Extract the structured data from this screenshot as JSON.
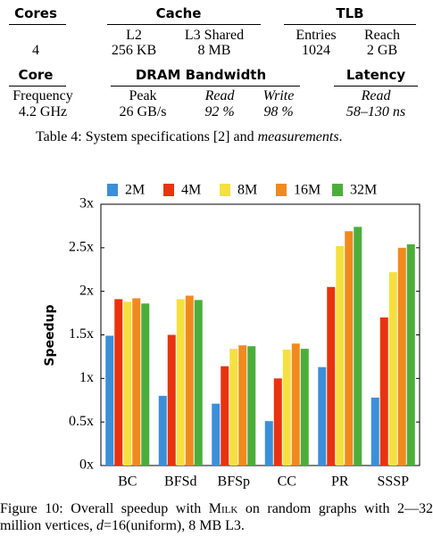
{
  "table": {
    "header1": [
      "Cores",
      "Cache",
      "TLB"
    ],
    "subheader1": [
      "L2",
      "L3 Shared",
      "Entries",
      "Reach"
    ],
    "row1": [
      "4",
      "256 KB",
      "8 MB",
      "1024",
      "2 GB"
    ],
    "header2": [
      "Core",
      "DRAM Bandwidth",
      "Latency"
    ],
    "subheader2": [
      "Frequency",
      "Peak",
      "Read",
      "Write",
      "Read"
    ],
    "row2": [
      "4.2 GHz",
      "26 GB/s",
      "92 %",
      "98 %",
      "58–130 ns"
    ],
    "caption": [
      "Table 4: System specifications [2] and ",
      "measurements",
      "."
    ]
  },
  "chart_data": {
    "type": "bar",
    "y_label": "Speedup",
    "categories": [
      "BC",
      "BFSd",
      "BFSp",
      "CC",
      "PR",
      "SSSP"
    ],
    "series": [
      {
        "name": "2M",
        "color": "#3b8fd9",
        "values": [
          1.49,
          0.8,
          0.71,
          0.51,
          1.13,
          0.78
        ]
      },
      {
        "name": "4M",
        "color": "#e8330f",
        "values": [
          1.91,
          1.5,
          1.14,
          1.0,
          2.05,
          1.7
        ]
      },
      {
        "name": "8M",
        "color": "#f5e040",
        "values": [
          1.88,
          1.91,
          1.34,
          1.33,
          2.52,
          2.22
        ]
      },
      {
        "name": "16M",
        "color": "#f08a1e",
        "values": [
          1.92,
          1.95,
          1.38,
          1.4,
          2.69,
          2.5
        ]
      },
      {
        "name": "32M",
        "color": "#4cae3a",
        "values": [
          1.86,
          1.9,
          1.37,
          1.34,
          2.74,
          2.54
        ]
      }
    ],
    "ylim": [
      0,
      3
    ],
    "yticks": [
      {
        "value": 0,
        "label": "0x"
      },
      {
        "value": 0.5,
        "label": "0.5x"
      },
      {
        "value": 1,
        "label": "1x"
      },
      {
        "value": 1.5,
        "label": "1.5x"
      },
      {
        "value": 2,
        "label": "2x"
      },
      {
        "value": 2.5,
        "label": "2.5x"
      },
      {
        "value": 3,
        "label": "3x"
      }
    ],
    "legend": "top"
  },
  "figure_caption": [
    "Figure 10: Overall speedup with ",
    "Milk",
    " on random graphs with 2—32 million vertices, ",
    "d",
    "=16(uniform), 8 MB L3."
  ]
}
